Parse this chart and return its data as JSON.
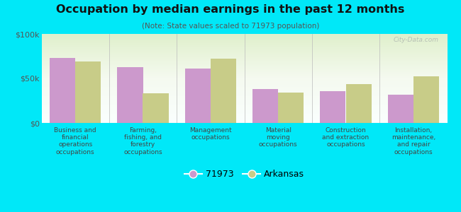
{
  "title": "Occupation by median earnings in the past 12 months",
  "subtitle": "(Note: State values scaled to 71973 population)",
  "background_color": "#00e8f8",
  "categories": [
    "Business and\nfinancial\noperations\noccupations",
    "Farming,\nfishing, and\nforestry\noccupations",
    "Management\noccupations",
    "Material\nmoving\noccupations",
    "Construction\nand extraction\noccupations",
    "Installation,\nmaintenance,\nand repair\noccupations"
  ],
  "values_71973": [
    73000,
    63000,
    61000,
    38000,
    36000,
    32000
  ],
  "values_arkansas": [
    69000,
    33000,
    72000,
    34000,
    44000,
    52000
  ],
  "color_71973": "#cc99cc",
  "color_arkansas": "#c8cc88",
  "legend_71973": "71973",
  "legend_arkansas": "Arkansas",
  "ylim": [
    0,
    100000
  ],
  "yticks": [
    0,
    50000,
    100000
  ],
  "ytick_labels": [
    "$0",
    "$50k",
    "$100k"
  ],
  "watermark": "City-Data.com",
  "bar_width": 0.38
}
